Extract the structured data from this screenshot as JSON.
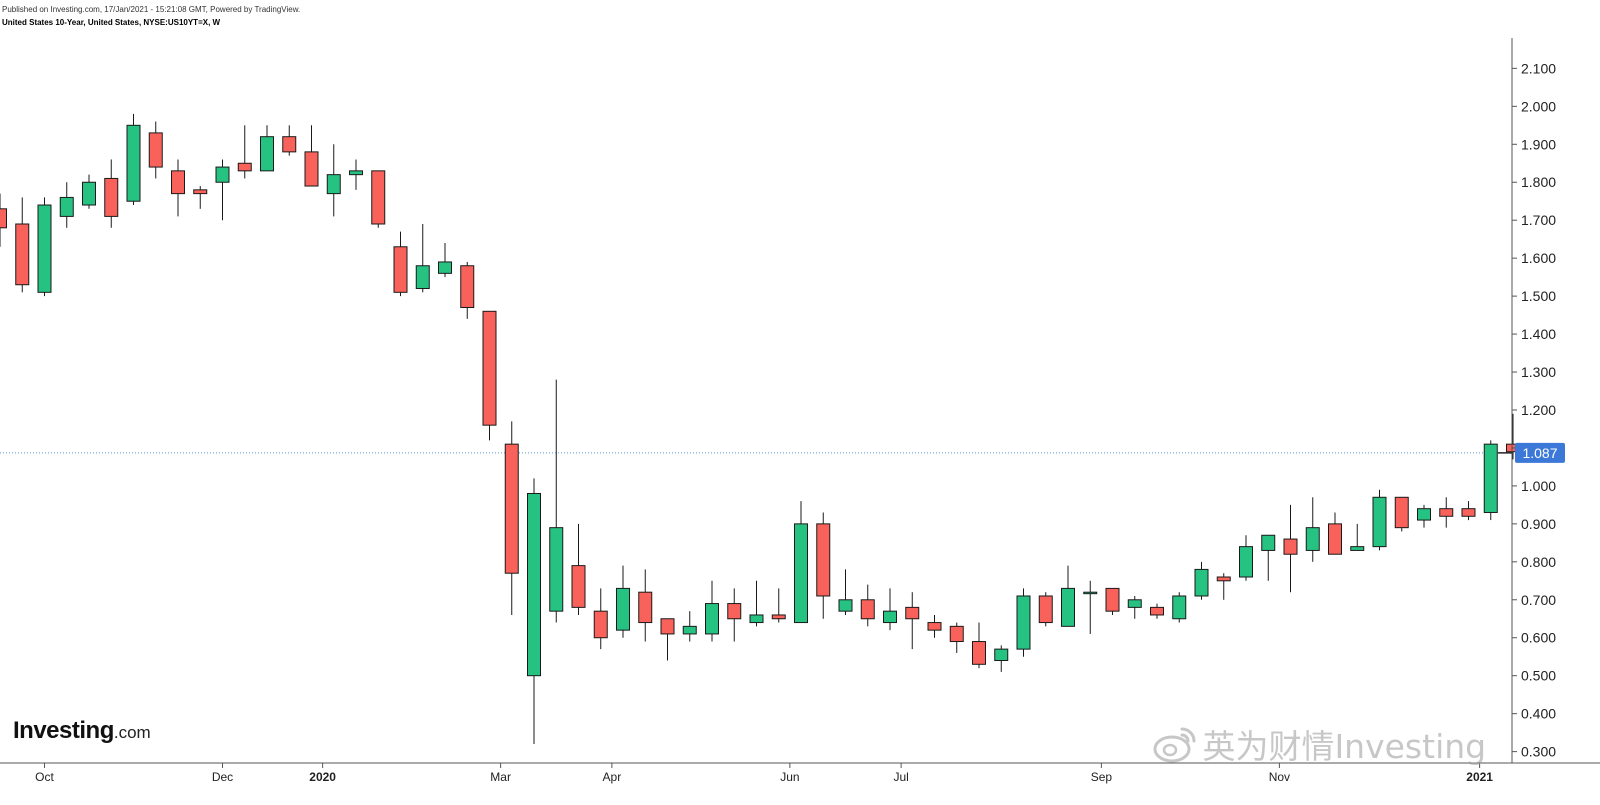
{
  "header": {
    "publish_line": "Published on Investing.com, 17/Jan/2021 - 15:21:08 GMT, Powered by TradingView.",
    "symbol_line": "United States 10-Year, United States, NYSE:US10YT=X, W"
  },
  "logo": {
    "main": "Investing",
    "suffix": ".com"
  },
  "watermark": {
    "text": "英为财情Investing",
    "icon": "weibo-icon"
  },
  "colors": {
    "up": "#26c281",
    "down": "#f8625a",
    "outline": "#1a1a1a",
    "price_line": "#5b9bd5",
    "price_label_bg": "#3c78d8",
    "axis": "#555555"
  },
  "chart_data": {
    "type": "candlestick",
    "interval": "W",
    "ylim": [
      0.27,
      2.18
    ],
    "yticks": [
      "2.100",
      "2.000",
      "1.900",
      "1.800",
      "1.700",
      "1.600",
      "1.500",
      "1.400",
      "1.300",
      "1.200",
      "1.100",
      "1.000",
      "0.900",
      "0.800",
      "0.700",
      "0.600",
      "0.500",
      "0.400",
      "0.300"
    ],
    "xticks": [
      {
        "label": "Oct",
        "index": 2
      },
      {
        "label": "Dec",
        "index": 10
      },
      {
        "label": "2020",
        "index": 14.5,
        "bold": true
      },
      {
        "label": "Mar",
        "index": 22.5
      },
      {
        "label": "Apr",
        "index": 27.5
      },
      {
        "label": "Jun",
        "index": 35.5
      },
      {
        "label": "Jul",
        "index": 40.5
      },
      {
        "label": "Sep",
        "index": 49.5
      },
      {
        "label": "Nov",
        "index": 57.5
      },
      {
        "label": "2021",
        "index": 66.5,
        "bold": true
      }
    ],
    "last_price": "1.087",
    "last_value": 1.087,
    "candles": [
      {
        "o": 1.73,
        "h": 1.77,
        "l": 1.63,
        "c": 1.68
      },
      {
        "o": 1.69,
        "h": 1.76,
        "l": 1.51,
        "c": 1.53
      },
      {
        "o": 1.51,
        "h": 1.76,
        "l": 1.5,
        "c": 1.74
      },
      {
        "o": 1.71,
        "h": 1.8,
        "l": 1.68,
        "c": 1.76
      },
      {
        "o": 1.74,
        "h": 1.82,
        "l": 1.73,
        "c": 1.8
      },
      {
        "o": 1.81,
        "h": 1.86,
        "l": 1.68,
        "c": 1.71
      },
      {
        "o": 1.75,
        "h": 1.98,
        "l": 1.74,
        "c": 1.95
      },
      {
        "o": 1.93,
        "h": 1.96,
        "l": 1.81,
        "c": 1.84
      },
      {
        "o": 1.83,
        "h": 1.86,
        "l": 1.71,
        "c": 1.77
      },
      {
        "o": 1.78,
        "h": 1.79,
        "l": 1.73,
        "c": 1.77
      },
      {
        "o": 1.8,
        "h": 1.86,
        "l": 1.7,
        "c": 1.84
      },
      {
        "o": 1.85,
        "h": 1.95,
        "l": 1.81,
        "c": 1.83
      },
      {
        "o": 1.83,
        "h": 1.95,
        "l": 1.83,
        "c": 1.92
      },
      {
        "o": 1.92,
        "h": 1.95,
        "l": 1.87,
        "c": 1.88
      },
      {
        "o": 1.88,
        "h": 1.95,
        "l": 1.79,
        "c": 1.79
      },
      {
        "o": 1.77,
        "h": 1.9,
        "l": 1.71,
        "c": 1.82
      },
      {
        "o": 1.82,
        "h": 1.86,
        "l": 1.78,
        "c": 1.83
      },
      {
        "o": 1.83,
        "h": 1.82,
        "l": 1.68,
        "c": 1.69
      },
      {
        "o": 1.63,
        "h": 1.67,
        "l": 1.5,
        "c": 1.51
      },
      {
        "o": 1.52,
        "h": 1.69,
        "l": 1.51,
        "c": 1.58
      },
      {
        "o": 1.56,
        "h": 1.64,
        "l": 1.55,
        "c": 1.59
      },
      {
        "o": 1.58,
        "h": 1.59,
        "l": 1.44,
        "c": 1.47
      },
      {
        "o": 1.46,
        "h": 1.46,
        "l": 1.12,
        "c": 1.16
      },
      {
        "o": 1.11,
        "h": 1.17,
        "l": 0.66,
        "c": 0.77
      },
      {
        "o": 0.5,
        "h": 1.02,
        "l": 0.32,
        "c": 0.98
      },
      {
        "o": 0.67,
        "h": 1.28,
        "l": 0.64,
        "c": 0.89
      },
      {
        "o": 0.79,
        "h": 0.9,
        "l": 0.66,
        "c": 0.68
      },
      {
        "o": 0.67,
        "h": 0.73,
        "l": 0.57,
        "c": 0.6
      },
      {
        "o": 0.62,
        "h": 0.79,
        "l": 0.6,
        "c": 0.73
      },
      {
        "o": 0.72,
        "h": 0.78,
        "l": 0.59,
        "c": 0.64
      },
      {
        "o": 0.65,
        "h": 0.65,
        "l": 0.54,
        "c": 0.61
      },
      {
        "o": 0.61,
        "h": 0.67,
        "l": 0.59,
        "c": 0.63
      },
      {
        "o": 0.61,
        "h": 0.75,
        "l": 0.59,
        "c": 0.69
      },
      {
        "o": 0.69,
        "h": 0.73,
        "l": 0.59,
        "c": 0.65
      },
      {
        "o": 0.64,
        "h": 0.75,
        "l": 0.63,
        "c": 0.66
      },
      {
        "o": 0.66,
        "h": 0.73,
        "l": 0.64,
        "c": 0.65
      },
      {
        "o": 0.64,
        "h": 0.96,
        "l": 0.64,
        "c": 0.9
      },
      {
        "o": 0.9,
        "h": 0.93,
        "l": 0.65,
        "c": 0.71
      },
      {
        "o": 0.67,
        "h": 0.78,
        "l": 0.66,
        "c": 0.7
      },
      {
        "o": 0.7,
        "h": 0.74,
        "l": 0.63,
        "c": 0.65
      },
      {
        "o": 0.64,
        "h": 0.73,
        "l": 0.62,
        "c": 0.67
      },
      {
        "o": 0.68,
        "h": 0.72,
        "l": 0.57,
        "c": 0.65
      },
      {
        "o": 0.64,
        "h": 0.66,
        "l": 0.6,
        "c": 0.62
      },
      {
        "o": 0.63,
        "h": 0.64,
        "l": 0.56,
        "c": 0.59
      },
      {
        "o": 0.59,
        "h": 0.64,
        "l": 0.52,
        "c": 0.53
      },
      {
        "o": 0.54,
        "h": 0.58,
        "l": 0.51,
        "c": 0.57
      },
      {
        "o": 0.57,
        "h": 0.73,
        "l": 0.55,
        "c": 0.71
      },
      {
        "o": 0.71,
        "h": 0.72,
        "l": 0.63,
        "c": 0.64
      },
      {
        "o": 0.63,
        "h": 0.79,
        "l": 0.63,
        "c": 0.73
      },
      {
        "o": 0.72,
        "h": 0.75,
        "l": 0.61,
        "c": 0.72
      },
      {
        "o": 0.73,
        "h": 0.72,
        "l": 0.66,
        "c": 0.67
      },
      {
        "o": 0.68,
        "h": 0.71,
        "l": 0.65,
        "c": 0.7
      },
      {
        "o": 0.68,
        "h": 0.69,
        "l": 0.65,
        "c": 0.66
      },
      {
        "o": 0.65,
        "h": 0.72,
        "l": 0.64,
        "c": 0.71
      },
      {
        "o": 0.71,
        "h": 0.8,
        "l": 0.7,
        "c": 0.78
      },
      {
        "o": 0.76,
        "h": 0.77,
        "l": 0.7,
        "c": 0.75
      },
      {
        "o": 0.76,
        "h": 0.87,
        "l": 0.75,
        "c": 0.84
      },
      {
        "o": 0.83,
        "h": 0.87,
        "l": 0.75,
        "c": 0.87
      },
      {
        "o": 0.86,
        "h": 0.95,
        "l": 0.72,
        "c": 0.82
      },
      {
        "o": 0.83,
        "h": 0.97,
        "l": 0.8,
        "c": 0.89
      },
      {
        "o": 0.9,
        "h": 0.93,
        "l": 0.82,
        "c": 0.82
      },
      {
        "o": 0.83,
        "h": 0.9,
        "l": 0.83,
        "c": 0.84
      },
      {
        "o": 0.84,
        "h": 0.99,
        "l": 0.83,
        "c": 0.97
      },
      {
        "o": 0.97,
        "h": 0.97,
        "l": 0.88,
        "c": 0.89
      },
      {
        "o": 0.91,
        "h": 0.95,
        "l": 0.89,
        "c": 0.94
      },
      {
        "o": 0.94,
        "h": 0.97,
        "l": 0.89,
        "c": 0.92
      },
      {
        "o": 0.94,
        "h": 0.96,
        "l": 0.91,
        "c": 0.92
      },
      {
        "o": 0.93,
        "h": 1.12,
        "l": 0.91,
        "c": 1.11
      },
      {
        "o": 1.11,
        "h": 1.19,
        "l": 1.07,
        "c": 1.09
      }
    ]
  }
}
